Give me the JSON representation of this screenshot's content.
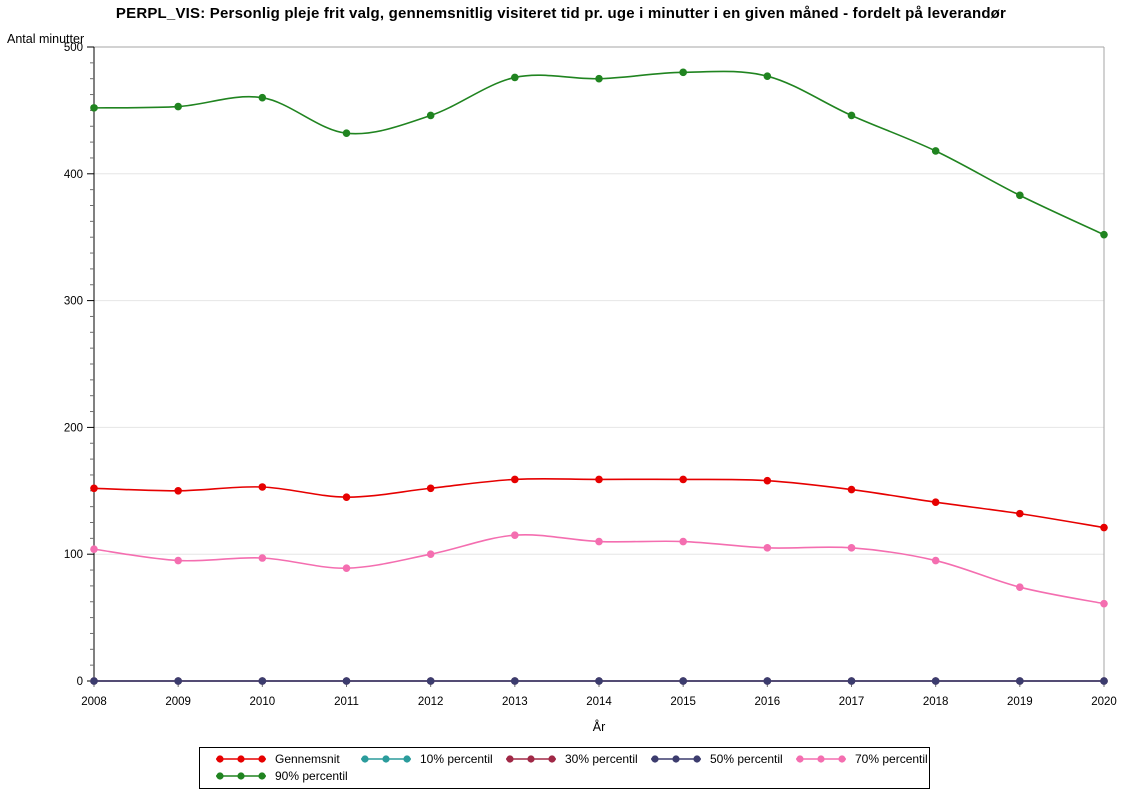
{
  "chart_data": {
    "type": "line",
    "title": "PERPL_VIS: Personlig pleje frit valg, gennemsnitlig visiteret tid pr. uge i minutter i en given måned - fordelt på leverandør",
    "xlabel": "År",
    "ylabel": "Antal minutter",
    "ylim": [
      0,
      500
    ],
    "yticks": [
      0,
      100,
      200,
      300,
      400,
      500
    ],
    "grid": "horizontal-light-gray",
    "legend_position": "bottom-boxed",
    "line_style": "smooth-with-dot-markers",
    "categories": [
      "2008",
      "2009",
      "2010",
      "2011",
      "2012",
      "2013",
      "2014",
      "2015",
      "2016",
      "2017",
      "2018",
      "2019",
      "2020"
    ],
    "series": [
      {
        "name": "Gennemsnit",
        "color": "#e60000",
        "values": [
          152,
          150,
          153,
          145,
          152,
          159,
          159,
          159,
          158,
          151,
          141,
          132,
          121
        ]
      },
      {
        "name": "10% percentil",
        "color": "#2b9c9c",
        "values": [
          0,
          0,
          0,
          0,
          0,
          0,
          0,
          0,
          0,
          0,
          0,
          0,
          0
        ]
      },
      {
        "name": "30% percentil",
        "color": "#a02846",
        "values": [
          0,
          0,
          0,
          0,
          0,
          0,
          0,
          0,
          0,
          0,
          0,
          0,
          0
        ]
      },
      {
        "name": "50% percentil",
        "color": "#3c3c6e",
        "values": [
          0,
          0,
          0,
          0,
          0,
          0,
          0,
          0,
          0,
          0,
          0,
          0,
          0
        ]
      },
      {
        "name": "70% percentil",
        "color": "#f46eb0",
        "values": [
          104,
          95,
          97,
          89,
          100,
          115,
          110,
          110,
          105,
          105,
          95,
          74,
          61
        ]
      },
      {
        "name": "90% percentil",
        "color": "#208420",
        "values": [
          452,
          453,
          460,
          432,
          446,
          476,
          475,
          480,
          477,
          446,
          418,
          383,
          352
        ]
      }
    ],
    "colors": {
      "grid": "#e6e6e6",
      "frame": "#a6a6a6",
      "axis": "#000000",
      "background": "#ffffff"
    }
  }
}
